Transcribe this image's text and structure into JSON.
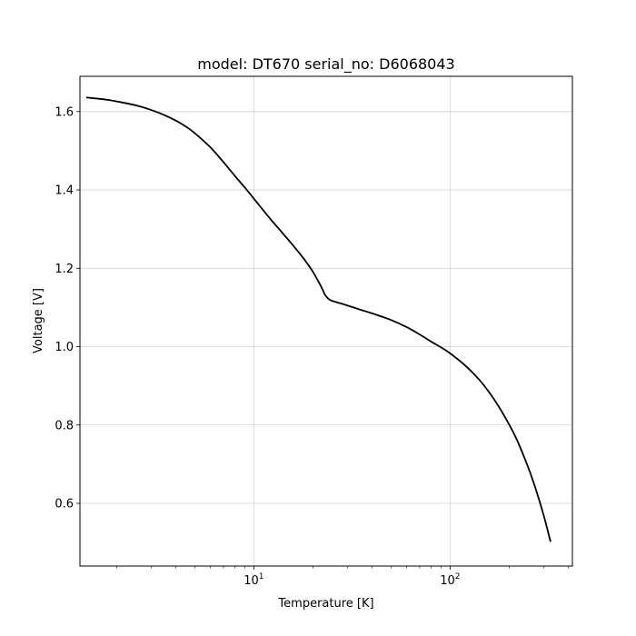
{
  "chart_data": {
    "type": "line",
    "title": "model: DT670 serial_no: D6068043",
    "xlabel": "Temperature [K]",
    "ylabel": "Voltage [V]",
    "xscale": "log",
    "xlim": [
      1.3,
      420
    ],
    "ylim": [
      0.44,
      1.69
    ],
    "grid": true,
    "x_tick_labels": [
      {
        "value": 10,
        "base": "10",
        "exp": "1"
      },
      {
        "value": 100,
        "base": "10",
        "exp": "2"
      }
    ],
    "y_ticks": [
      0.6,
      0.8,
      1.0,
      1.2,
      1.4,
      1.6
    ],
    "y_tick_labels": [
      "0.6",
      "0.8",
      "1.0",
      "1.2",
      "1.4",
      "1.6"
    ],
    "line_color": "#000000",
    "series": [
      {
        "x": [
          1.4,
          1.6,
          1.8,
          2.0,
          2.5,
          3.0,
          3.5,
          4.0,
          4.5,
          5.0,
          6.0,
          7.0,
          8.0,
          9.0,
          10.0,
          12.0,
          14.0,
          16.0,
          18.0,
          20.0,
          21.5,
          22.5,
          23.0,
          24.0,
          25.0,
          27.0,
          30.0,
          35.0,
          40.0,
          50.0,
          60.0,
          70.0,
          80.0,
          90.0,
          100.0,
          120.0,
          140.0,
          160.0,
          180.0,
          200.0,
          220.0,
          250.0,
          275.0,
          300.0,
          325.0
        ],
        "y": [
          1.636,
          1.633,
          1.63,
          1.626,
          1.616,
          1.604,
          1.591,
          1.577,
          1.562,
          1.545,
          1.509,
          1.471,
          1.436,
          1.406,
          1.378,
          1.329,
          1.29,
          1.256,
          1.224,
          1.191,
          1.163,
          1.144,
          1.133,
          1.122,
          1.117,
          1.112,
          1.105,
          1.094,
          1.085,
          1.068,
          1.05,
          1.031,
          1.013,
          0.998,
          0.983,
          0.951,
          0.917,
          0.88,
          0.841,
          0.801,
          0.76,
          0.692,
          0.632,
          0.569,
          0.502
        ]
      }
    ]
  }
}
